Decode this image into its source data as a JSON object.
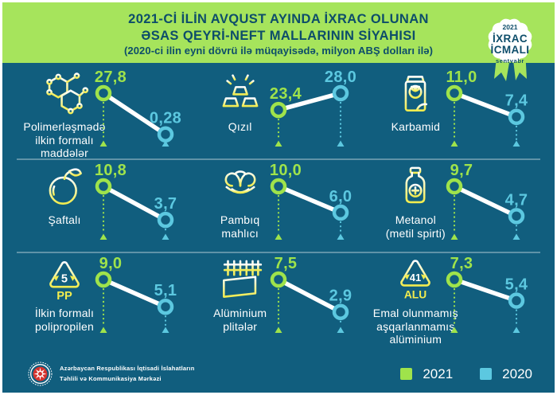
{
  "colors": {
    "background": "#115e7e",
    "header_green": "#a6e45c",
    "header_text": "#0d4d6a",
    "accent_2021": "#9fe34b",
    "accent_2020": "#5cc8e0",
    "icon_yellow": "#f1ec4e",
    "white": "#ffffff",
    "emblem_red": "#d5342f"
  },
  "header": {
    "title_line1": "2021-Cİ İLİN AVQUST AYINDA İXRAC OLUNAN",
    "title_line2": "ƏSAS QEYRİ-NEFT MALLARININ SİYAHISI",
    "subtitle": "(2020-ci ilin eyni dövrü ilə müqayisədə, milyon ABŞ dolları ilə)"
  },
  "badge": {
    "year": "2021",
    "line1": "İXRAC",
    "line2": "İCMALI",
    "month": "sentyabr"
  },
  "items": [
    {
      "icon": "polymer-molecule-icon",
      "label_lines": [
        "Polimerləşmədə",
        "ilkin formalı",
        "maddələr"
      ],
      "value_2021": "27,8",
      "value_2020": "0,28"
    },
    {
      "icon": "gold-bars-icon",
      "label_lines": [
        "Qızıl"
      ],
      "value_2021": "23,4",
      "value_2020": "28,0"
    },
    {
      "icon": "fertilizer-bag-icon",
      "label_lines": [
        "Karbamid"
      ],
      "value_2021": "11,0",
      "value_2020": "7,4"
    },
    {
      "icon": "peach-icon",
      "label_lines": [
        "Şaftalı"
      ],
      "value_2021": "10,8",
      "value_2020": "3,7"
    },
    {
      "icon": "cotton-boll-icon",
      "label_lines": [
        "Pambıq",
        "mahlıcı"
      ],
      "value_2021": "10,0",
      "value_2020": "6,0"
    },
    {
      "icon": "methanol-bottle-icon",
      "label_lines": [
        "Metanol",
        "(metil spirti)"
      ],
      "value_2021": "9,7",
      "value_2020": "4,7"
    },
    {
      "icon": "recycle-pp-icon",
      "icon_text": {
        "number": "5",
        "code": "PP"
      },
      "label_lines": [
        "İlkin formalı",
        "polipropilen"
      ],
      "value_2021": "9,0",
      "value_2020": "5,1"
    },
    {
      "icon": "aluminium-plates-icon",
      "label_lines": [
        "Alüminium",
        "plitələr"
      ],
      "value_2021": "7,5",
      "value_2020": "2,9"
    },
    {
      "icon": "recycle-alu-icon",
      "icon_text": {
        "number": "41",
        "code": "ALU"
      },
      "label_lines": [
        "Emal olunmamış",
        "aşqarlanmamış",
        "alüminium"
      ],
      "value_2021": "7,3",
      "value_2020": "5,4"
    }
  ],
  "legend": [
    {
      "label": "2021",
      "color": "#9fe34b"
    },
    {
      "label": "2020",
      "color": "#5cc8e0"
    }
  ],
  "footer": {
    "org_line1": "Azərbaycan Respublikası İqtisadi İslahatların",
    "org_line2": "Təhlili və Kommunikasiya Mərkəzi"
  },
  "chart_data": {
    "type": "line",
    "title": "2021-ci ilin avqust ayında ixrac olunan əsas qeyri-neft mallarının siyahısı",
    "subtitle": "2020-ci ilin eyni dövrü ilə müqayisədə",
    "unit": "milyon ABŞ dolları",
    "categories": [
      "Polimerləşmədə ilkin formalı maddələr",
      "Qızıl",
      "Karbamid",
      "Şaftalı",
      "Pambıq mahlıcı",
      "Metanol (metil spirti)",
      "İlkin formalı polipropilen",
      "Alüminium plitələr",
      "Emal olunmamış aşqarlanmamış alüminium"
    ],
    "series": [
      {
        "name": "2021",
        "color": "#9fe34b",
        "values": [
          27.8,
          23.4,
          11.0,
          10.8,
          10.0,
          9.7,
          9.0,
          7.5,
          7.3
        ]
      },
      {
        "name": "2020",
        "color": "#5cc8e0",
        "values": [
          0.28,
          28.0,
          7.4,
          3.7,
          6.0,
          4.7,
          5.1,
          2.9,
          5.4
        ]
      }
    ],
    "legend_position": "bottom-right",
    "grid": false
  }
}
